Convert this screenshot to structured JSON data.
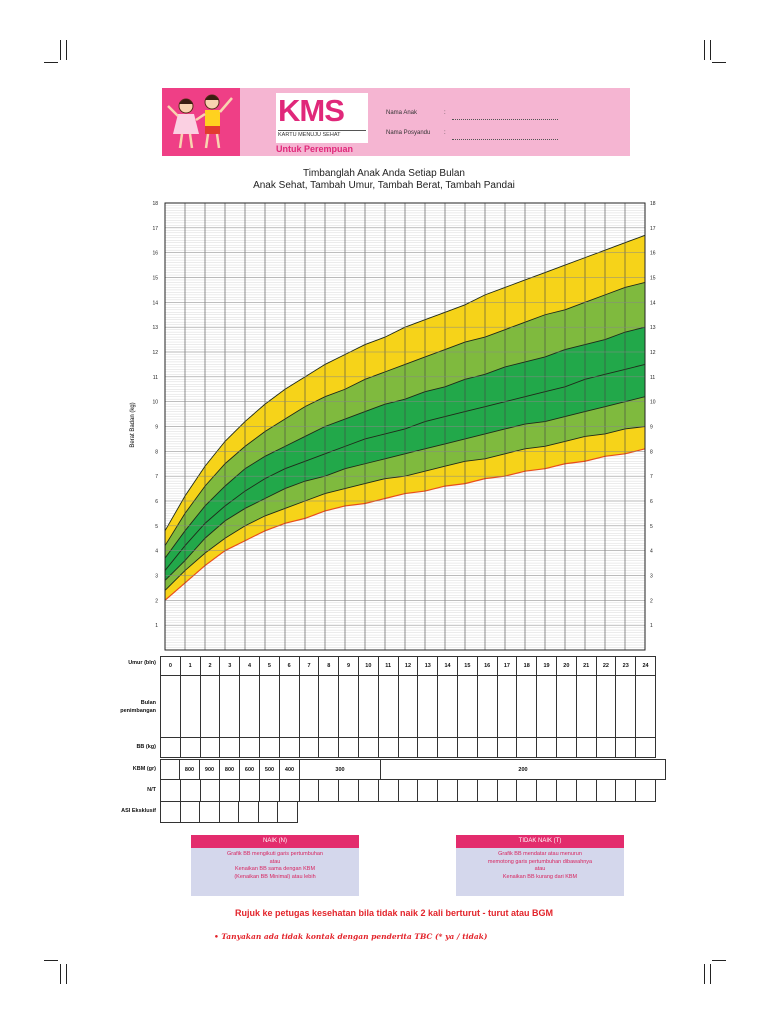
{
  "header": {
    "logo": "KMS",
    "logo_subtitle": "KARTU MENUJU SEHAT",
    "variant": "Untuk Perempuan",
    "nama_anak_label": "Nama Anak",
    "nama_anak_sep": ":",
    "nama_posyandu_label": "Nama Posyandu",
    "nama_posyandu_sep": ":"
  },
  "titles": {
    "line1": "Timbanglah Anak Anda Setiap Bulan",
    "line2": "Anak Sehat, Tambah Umur, Tambah Berat, Tambah Pandai"
  },
  "chart_data": {
    "type": "area",
    "ylabel": "Berat Badan (kg)",
    "ylim": [
      0,
      18
    ],
    "xlim": [
      0,
      24
    ],
    "y_ticks": [
      1,
      2,
      3,
      4,
      5,
      6,
      7,
      8,
      9,
      10,
      11,
      12,
      13,
      14,
      15,
      16,
      17,
      18
    ],
    "x": [
      0,
      1,
      2,
      3,
      4,
      5,
      6,
      7,
      8,
      9,
      10,
      11,
      12,
      13,
      14,
      15,
      16,
      17,
      18,
      19,
      20,
      21,
      22,
      23,
      24
    ],
    "bands": [
      {
        "values": [
          2.0,
          2.7,
          3.4,
          4.0,
          4.4,
          4.8,
          5.1,
          5.3,
          5.6,
          5.8,
          5.9,
          6.1,
          6.3,
          6.4,
          6.6,
          6.7,
          6.9,
          7.0,
          7.2,
          7.3,
          7.5,
          7.6,
          7.8,
          7.9,
          8.1
        ]
      },
      {
        "values": [
          2.4,
          3.2,
          3.9,
          4.5,
          5.0,
          5.4,
          5.7,
          6.0,
          6.3,
          6.5,
          6.7,
          6.9,
          7.0,
          7.2,
          7.4,
          7.6,
          7.7,
          7.9,
          8.1,
          8.2,
          8.4,
          8.6,
          8.7,
          8.9,
          9.0
        ]
      },
      {
        "values": [
          2.8,
          3.6,
          4.5,
          5.2,
          5.7,
          6.1,
          6.5,
          6.8,
          7.0,
          7.3,
          7.5,
          7.7,
          7.9,
          8.1,
          8.3,
          8.5,
          8.7,
          8.9,
          9.1,
          9.2,
          9.4,
          9.6,
          9.8,
          10.0,
          10.2
        ]
      },
      {
        "values": [
          3.2,
          4.2,
          5.1,
          5.8,
          6.4,
          6.9,
          7.3,
          7.6,
          7.9,
          8.2,
          8.5,
          8.7,
          8.9,
          9.2,
          9.4,
          9.6,
          9.8,
          10.0,
          10.2,
          10.4,
          10.6,
          10.9,
          11.1,
          11.3,
          11.5
        ]
      },
      {
        "values": [
          3.7,
          4.8,
          5.8,
          6.6,
          7.3,
          7.8,
          8.2,
          8.6,
          9.0,
          9.3,
          9.6,
          9.9,
          10.1,
          10.4,
          10.6,
          10.9,
          11.1,
          11.4,
          11.6,
          11.8,
          12.1,
          12.3,
          12.5,
          12.8,
          13.0
        ]
      },
      {
        "values": [
          4.2,
          5.5,
          6.6,
          7.5,
          8.2,
          8.8,
          9.3,
          9.8,
          10.2,
          10.5,
          10.9,
          11.2,
          11.5,
          11.8,
          12.1,
          12.4,
          12.6,
          12.9,
          13.2,
          13.5,
          13.7,
          14.0,
          14.3,
          14.6,
          14.8
        ]
      },
      {
        "values": [
          4.8,
          6.2,
          7.4,
          8.4,
          9.2,
          9.9,
          10.5,
          11.0,
          11.5,
          11.9,
          12.3,
          12.6,
          13.0,
          13.3,
          13.6,
          13.9,
          14.3,
          14.6,
          14.9,
          15.2,
          15.5,
          15.8,
          16.1,
          16.4,
          16.7
        ]
      }
    ],
    "band_colors": [
      "#f6d319",
      "#7fba3e",
      "#22a84a",
      "#22a84a",
      "#7fba3e",
      "#f6d319"
    ],
    "bottom_line_color": "#e94e1b"
  },
  "table": {
    "umur_label": "Umur (bln)",
    "umur_values": [
      "0",
      "1",
      "2",
      "3",
      "4",
      "5",
      "6",
      "7",
      "8",
      "9",
      "10",
      "11",
      "12",
      "13",
      "14",
      "15",
      "16",
      "17",
      "18",
      "19",
      "20",
      "21",
      "22",
      "23",
      "24"
    ],
    "bulan_label_1": "Bulan",
    "bulan_label_2": "penimbangan",
    "bb_label": "BB (kg)",
    "kbm_label": "KBM (gr)",
    "kbm_values": [
      "800",
      "900",
      "800",
      "600",
      "500",
      "400",
      "300",
      "200"
    ],
    "nt_label": "N/T",
    "asi_label": "ASI Eksklusif"
  },
  "legend": {
    "naik": {
      "title": "NAIK (N)",
      "line1": "Grafik BB mengikuti garis pertumbuhan",
      "line2": "atau",
      "line3": "Kenaikan BB sama dengan KBM",
      "line4": "(Kenaikan BB Minimal) atau lebih"
    },
    "tidak_naik": {
      "title": "TIDAK NAIK (T)",
      "line1": "Grafik BB mendatar atau menurun",
      "line2": "memotong garis pertumbuhan dibawahnya",
      "line3": "atau",
      "line4": "Kenaikan BB kurang dari KBM"
    }
  },
  "footer": {
    "rujuk": "Rujuk ke petugas kesehatan bila tidak naik 2 kali berturut - turut atau BGM",
    "tanyakan": "•   Tanyakan ada tidak kontak dengan penderita TBC (* ya / tidak)"
  }
}
